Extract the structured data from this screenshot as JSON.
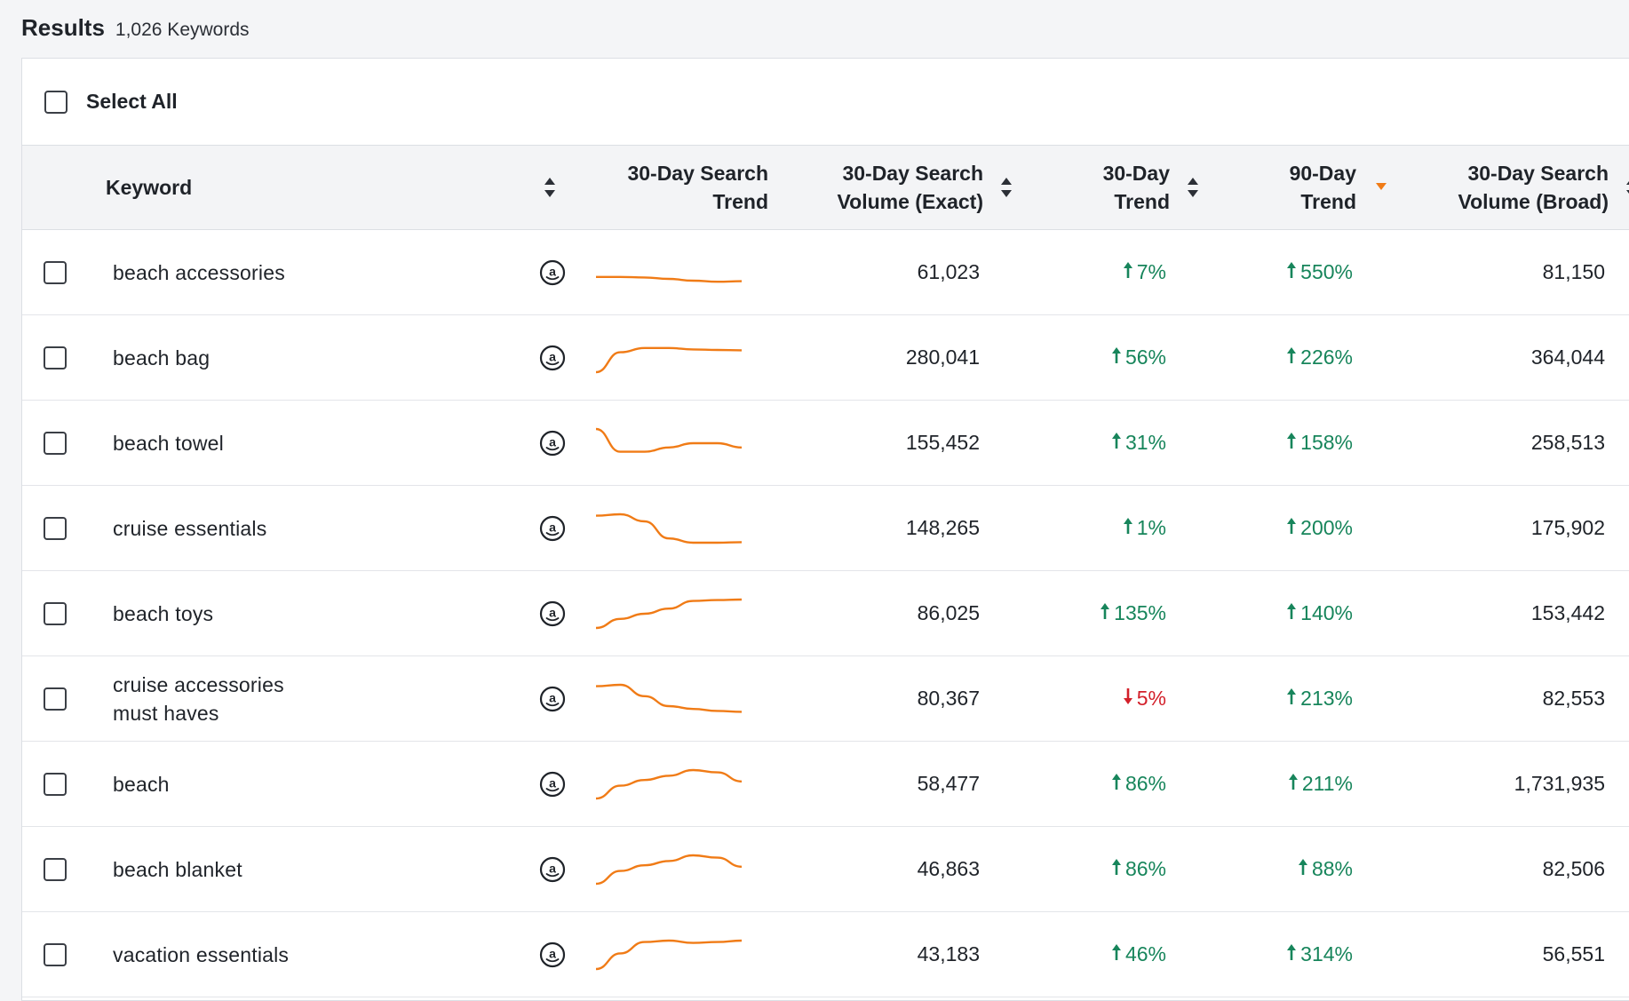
{
  "header": {
    "title": "Results",
    "count": "1,026 Keywords"
  },
  "select_all": {
    "label": "Select All"
  },
  "columns": {
    "keyword": "Keyword",
    "search_trend": [
      "30-Day Search",
      "Trend"
    ],
    "volume_exact": [
      "30-Day Search",
      "Volume (Exact)"
    ],
    "trend_30": [
      "30-Day",
      "Trend"
    ],
    "trend_90": [
      "90-Day",
      "Trend"
    ],
    "volume_broad": [
      "30-Day Search",
      "Volume (Broad)"
    ]
  },
  "colors": {
    "sparkline": "#f07b16",
    "up": "#17855b",
    "down": "#d3202a",
    "sort_active": "#f07b16"
  },
  "active_sort": "trend_90",
  "rows": [
    {
      "keyword": [
        "beach accessories"
      ],
      "volume_exact": "61,023",
      "trend_30": {
        "dir": "up",
        "value": "7%"
      },
      "trend_90": {
        "dir": "up",
        "value": "550%"
      },
      "volume_broad": "81,150",
      "spark": [
        0.35,
        0.35,
        0.33,
        0.28,
        0.22,
        0.18,
        0.2
      ]
    },
    {
      "keyword": [
        "beach bag"
      ],
      "volume_exact": "280,041",
      "trend_30": {
        "dir": "up",
        "value": "56%"
      },
      "trend_90": {
        "dir": "up",
        "value": "226%"
      },
      "volume_broad": "364,044",
      "spark": [
        0.0,
        0.7,
        0.85,
        0.85,
        0.8,
        0.78,
        0.77
      ]
    },
    {
      "keyword": [
        "beach towel"
      ],
      "volume_exact": "155,452",
      "trend_30": {
        "dir": "up",
        "value": "31%"
      },
      "trend_90": {
        "dir": "up",
        "value": "158%"
      },
      "volume_broad": "258,513",
      "spark": [
        1.0,
        0.2,
        0.2,
        0.35,
        0.5,
        0.5,
        0.35
      ]
    },
    {
      "keyword": [
        "cruise essentials"
      ],
      "volume_exact": "148,265",
      "trend_30": {
        "dir": "up",
        "value": "1%"
      },
      "trend_90": {
        "dir": "up",
        "value": "200%"
      },
      "volume_broad": "175,902",
      "spark": [
        0.95,
        1.0,
        0.75,
        0.15,
        0.0,
        0.0,
        0.02
      ]
    },
    {
      "keyword": [
        "beach toys"
      ],
      "volume_exact": "86,025",
      "trend_30": {
        "dir": "up",
        "value": "135%"
      },
      "trend_90": {
        "dir": "up",
        "value": "140%"
      },
      "volume_broad": "153,442",
      "spark": [
        0.0,
        0.32,
        0.5,
        0.68,
        0.95,
        0.98,
        1.0
      ]
    },
    {
      "keyword": [
        "cruise accessories",
        "must haves"
      ],
      "volume_exact": "80,367",
      "trend_30": {
        "dir": "down",
        "value": "5%"
      },
      "trend_90": {
        "dir": "up",
        "value": "213%"
      },
      "volume_broad": "82,553",
      "spark": [
        0.95,
        1.0,
        0.6,
        0.25,
        0.15,
        0.08,
        0.05
      ]
    },
    {
      "keyword": [
        "beach"
      ],
      "volume_exact": "58,477",
      "trend_30": {
        "dir": "up",
        "value": "86%"
      },
      "trend_90": {
        "dir": "up",
        "value": "211%"
      },
      "volume_broad": "1,731,935",
      "spark": [
        0.0,
        0.45,
        0.65,
        0.8,
        1.0,
        0.92,
        0.6
      ]
    },
    {
      "keyword": [
        "beach blanket"
      ],
      "volume_exact": "46,863",
      "trend_30": {
        "dir": "up",
        "value": "86%"
      },
      "trend_90": {
        "dir": "up",
        "value": "88%"
      },
      "volume_broad": "82,506",
      "spark": [
        0.0,
        0.45,
        0.65,
        0.8,
        1.0,
        0.92,
        0.6
      ]
    },
    {
      "keyword": [
        "vacation essentials"
      ],
      "volume_exact": "43,183",
      "trend_30": {
        "dir": "up",
        "value": "46%"
      },
      "trend_90": {
        "dir": "up",
        "value": "314%"
      },
      "volume_broad": "56,551",
      "spark": [
        0.0,
        0.55,
        0.95,
        1.0,
        0.92,
        0.95,
        1.0
      ]
    }
  ]
}
